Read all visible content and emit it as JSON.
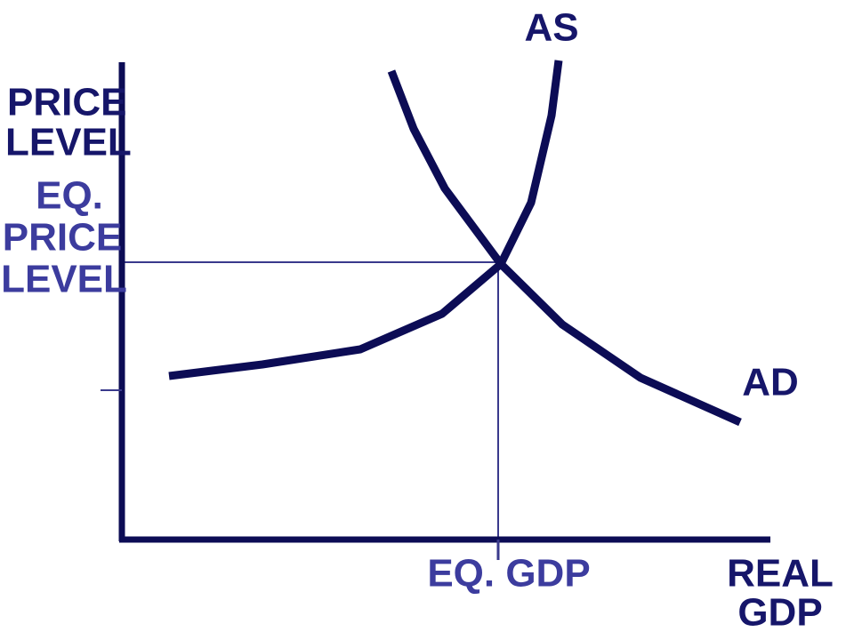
{
  "curves": {
    "supply": "AS",
    "demand": "AD"
  },
  "y_axis_label": [
    "PRICE",
    "LEVEL"
  ],
  "equilibrium_price_label": [
    "EQ.",
    "PRICE",
    "LEVEL"
  ],
  "equilibrium_gdp_label": "EQ. GDP",
  "x_axis_label": [
    "REAL",
    "GDP"
  ]
}
